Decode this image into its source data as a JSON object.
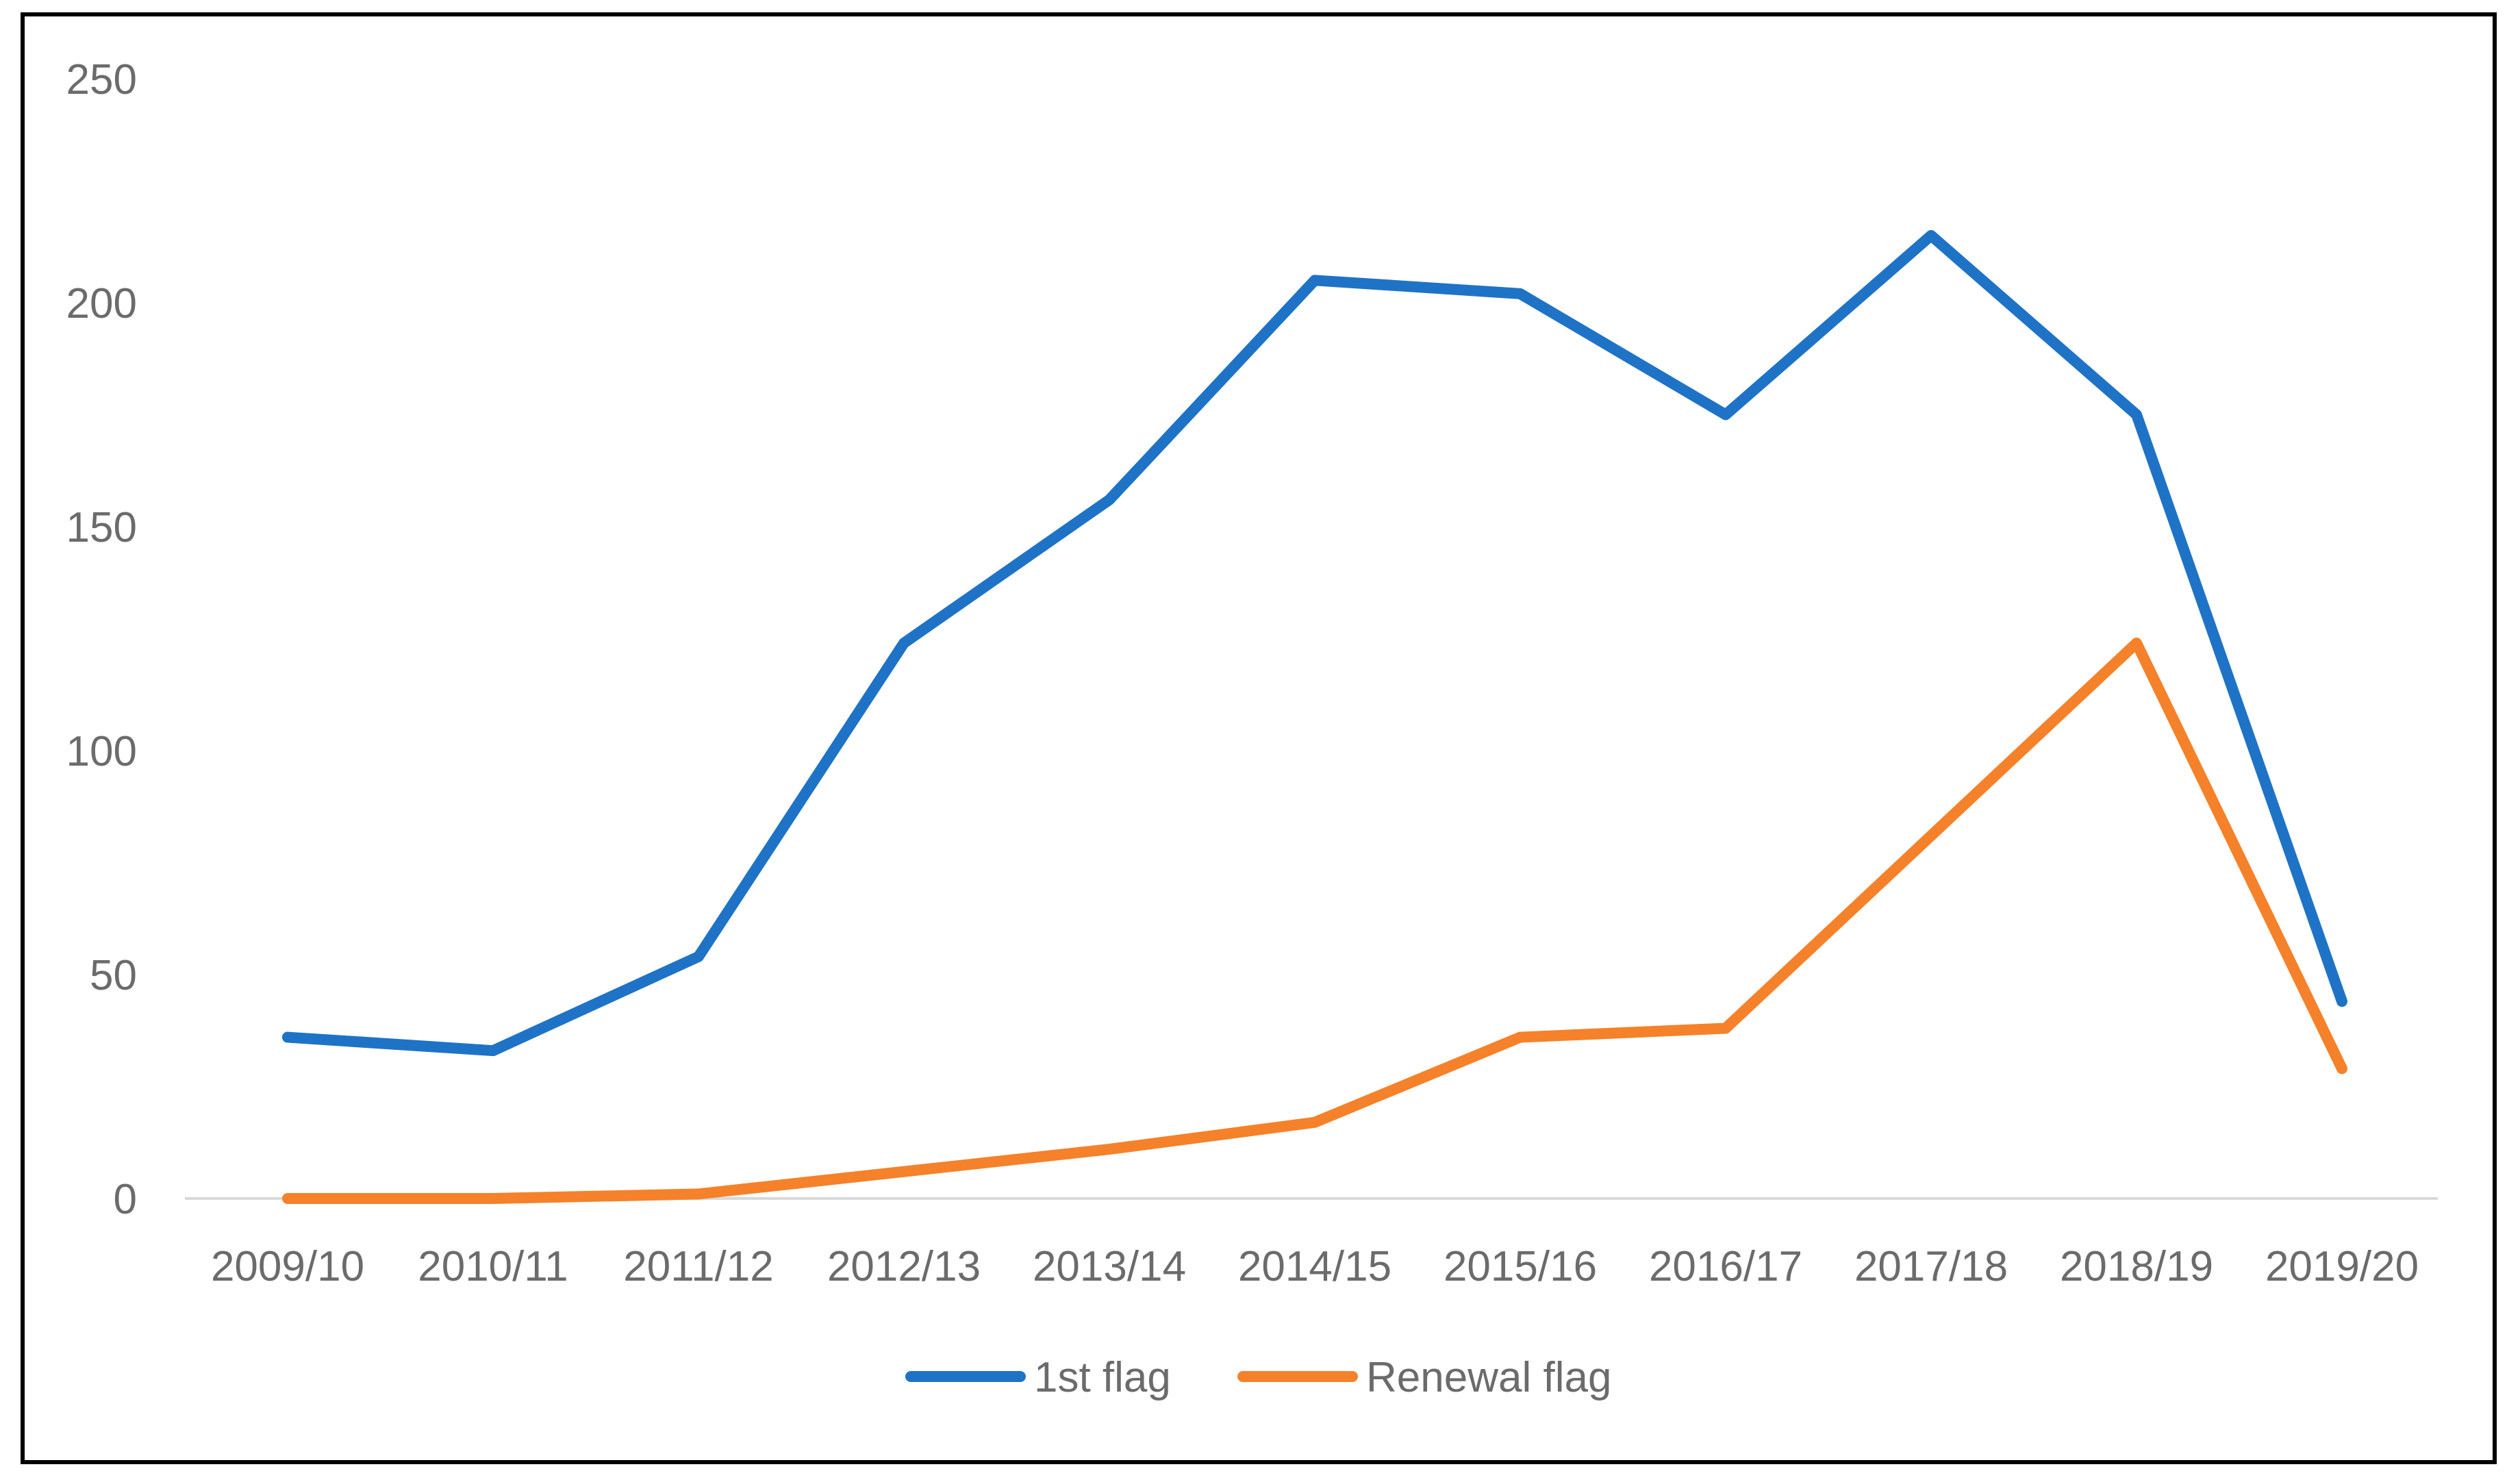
{
  "chart_data": {
    "type": "line",
    "categories": [
      "2009/10",
      "2010/11",
      "2011/12",
      "2012/13",
      "2013/14",
      "2014/15",
      "2015/16",
      "2016/17",
      "2017/18",
      "2018/19",
      "2019/20"
    ],
    "series": [
      {
        "name": "1st flag",
        "color": "#1f73c6",
        "values": [
          36,
          33,
          54,
          124,
          156,
          205,
          202,
          175,
          215,
          175,
          44
        ]
      },
      {
        "name": "Renewal flag",
        "color": "#f5812a",
        "values": [
          0,
          0,
          1,
          6,
          11,
          17,
          36,
          38,
          81,
          124,
          29
        ]
      }
    ],
    "ylim": [
      0,
      250
    ],
    "yticks": [
      0,
      50,
      100,
      150,
      200,
      250
    ],
    "grid": false,
    "legend_position": "bottom-center",
    "title": "",
    "xlabel": "",
    "ylabel": ""
  }
}
